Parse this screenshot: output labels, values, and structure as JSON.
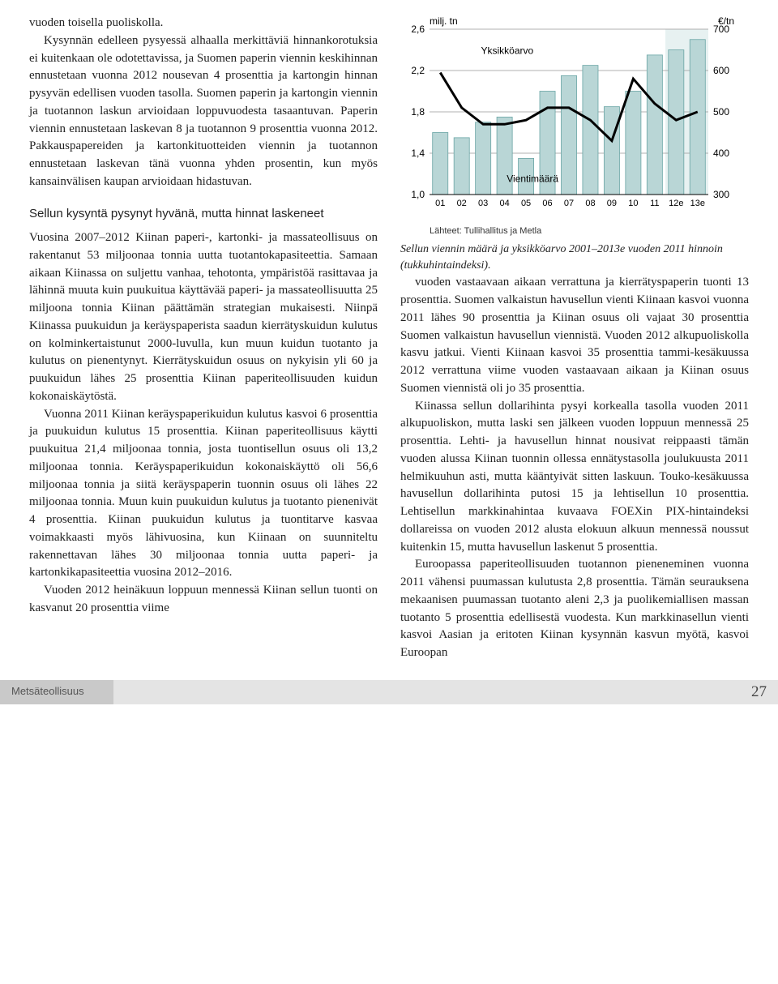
{
  "left": {
    "p1": "vuoden toisella puoliskolla.",
    "p2": "Kysynnän edelleen pysyessä alhaalla merkittäviä hinnankorotuksia ei kuitenkaan ole odotettavissa, ja Suomen paperin viennin keskihinnan ennustetaan vuonna 2012 nousevan 4 prosenttia ja kartongin hinnan pysyvän edellisen vuoden tasolla. Suomen paperin ja kartongin viennin ja tuotannon laskun arvioidaan loppuvuodesta tasaantuvan. Paperin viennin ennustetaan laskevan 8 ja tuotannon 9 prosenttia vuonna 2012. Pakkauspapereiden ja kartonkituotteiden viennin ja tuotannon ennustetaan laskevan tänä vuonna yhden prosentin, kun myös kansainvälisen kaupan arvioidaan hidastuvan.",
    "subhead": "Sellun kysyntä pysynyt hyvänä, mutta hinnat laskeneet",
    "p3": "Vuosina 2007–2012 Kiinan paperi-, kartonki- ja massateollisuus on rakentanut 53 miljoonaa tonnia uutta tuotantokapasiteettia. Samaan aikaan Kiinassa on suljettu vanhaa, tehotonta, ympäristöä rasittavaa ja lähinnä muuta kuin puukuitua käyttävää paperi- ja massateollisuutta 25 miljoona tonnia Kiinan päättämän strategian mukaisesti. Niinpä Kiinassa puukuidun ja keräyspaperista saadun kierrätyskuidun kulutus on kolminkertaistunut 2000-luvulla, kun muun kuidun tuotanto ja kulutus on pienentynyt. Kierrätyskuidun osuus on nykyisin yli 60 ja puukuidun lähes 25 prosenttia Kiinan paperiteollisuuden kuidun kokonaiskäytöstä.",
    "p4": "Vuonna 2011 Kiinan keräyspaperikuidun kulutus kasvoi 6 prosenttia ja puukuidun kulutus 15 prosenttia. Kiinan paperiteollisuus käytti puukuitua 21,4 miljoonaa tonnia, josta tuontisellun osuus oli 13,2 miljoonaa tonnia. Keräyspaperikuidun kokonaiskäyttö oli 56,6 miljoonaa tonnia ja siitä keräyspaperin tuonnin osuus oli lähes 22 miljoonaa tonnia. Muun kuin puukuidun kulutus ja tuotanto pienenivät 4 prosenttia. Kiinan puukuidun kulutus ja tuontitarve kasvaa voimakkaasti myös lähivuosina, kun Kiinaan on suunniteltu rakennettavan lähes 30 miljoonaa tonnia uutta paperi- ja kartonkikapasiteettia vuosina 2012–2016.",
    "p5": "Vuoden 2012 heinäkuun loppuun mennessä Kiinan sellun tuonti on kasvanut 20 prosenttia viime"
  },
  "right": {
    "caption": "Sellun viennin määrä ja yksikköarvo 2001–2013e vuoden 2011 hinnoin (tukkuhintaindeksi).",
    "p1": "vuoden vastaavaan aikaan verrattuna ja kierrätyspaperin tuonti 13 prosenttia. Suomen valkaistun havusellun vienti Kiinaan kasvoi vuonna 2011 lähes 90 prosenttia ja Kiinan osuus oli vajaat 30 prosenttia Suomen valkaistun havusellun viennistä. Vuoden 2012 alkupuoliskolla kasvu jatkui. Vienti Kiinaan kasvoi 35 prosenttia tammi-kesäkuussa 2012 verrattuna viime vuoden vastaavaan aikaan ja Kiinan osuus Suomen viennistä oli jo 35 prosenttia.",
    "p2": "Kiinassa sellun dollarihinta pysyi korkealla tasolla vuoden 2011 alkupuoliskon, mutta laski sen jälkeen vuoden loppuun mennessä 25 prosenttia. Lehti- ja havusellun hinnat nousivat reippaasti tämän vuoden alussa Kiinan tuonnin ollessa ennätystasolla joulukuusta 2011 helmikuuhun asti, mutta kääntyivät sitten laskuun. Touko-kesäkuussa havusellun dollarihinta putosi 15 ja lehtisellun 10 prosenttia. Lehtisellun markkinahintaa kuvaava FOEXin PIX-hintaindeksi dollareissa on vuoden 2012 alusta elokuun alkuun mennessä noussut kuitenkin 15, mutta havusellun laskenut 5 prosenttia.",
    "p3": "Euroopassa paperiteollisuuden tuotannon pieneneminen vuonna 2011 vähensi puumassan kulutusta 2,8 prosenttia. Tämän seurauksena mekaanisen puumassan tuotanto aleni 2,3 ja puolikemiallisen massan tuotanto 5 prosenttia edellisestä vuodesta. Kun markkinasellun vienti kasvoi Aasian ja eritoten Kiinan kysynnän kasvun myötä, kasvoi Euroopan"
  },
  "chart": {
    "label_left": "milj. tn",
    "label_right": "€/tn",
    "legend_top": "Yksikköarvo",
    "legend_mid": "Vientimäärä",
    "source": "Lähteet: Tullihallitus ja Metla",
    "categories": [
      "01",
      "02",
      "03",
      "04",
      "05",
      "06",
      "07",
      "08",
      "09",
      "10",
      "11",
      "12e",
      "13e"
    ],
    "bars": [
      1.6,
      1.55,
      1.7,
      1.75,
      1.35,
      2.0,
      2.15,
      2.25,
      1.85,
      2.0,
      2.35,
      2.4,
      2.5
    ],
    "line": [
      595,
      510,
      470,
      470,
      480,
      510,
      510,
      480,
      430,
      580,
      520,
      480,
      500
    ],
    "left_ticks": [
      1.0,
      1.4,
      1.8,
      2.2,
      2.6
    ],
    "right_ticks": [
      300,
      400,
      500,
      600,
      700
    ],
    "bar_color": "#b9d6d6",
    "bar_stroke": "#6aa5a5",
    "forecast_fill": "#e7f1f1",
    "line_color": "#000000",
    "grid_color": "#999999",
    "bg": "#ffffff",
    "axis_font": 12,
    "legend_font": 12
  },
  "footer": {
    "section": "Metsäteollisuus",
    "page": "27"
  }
}
